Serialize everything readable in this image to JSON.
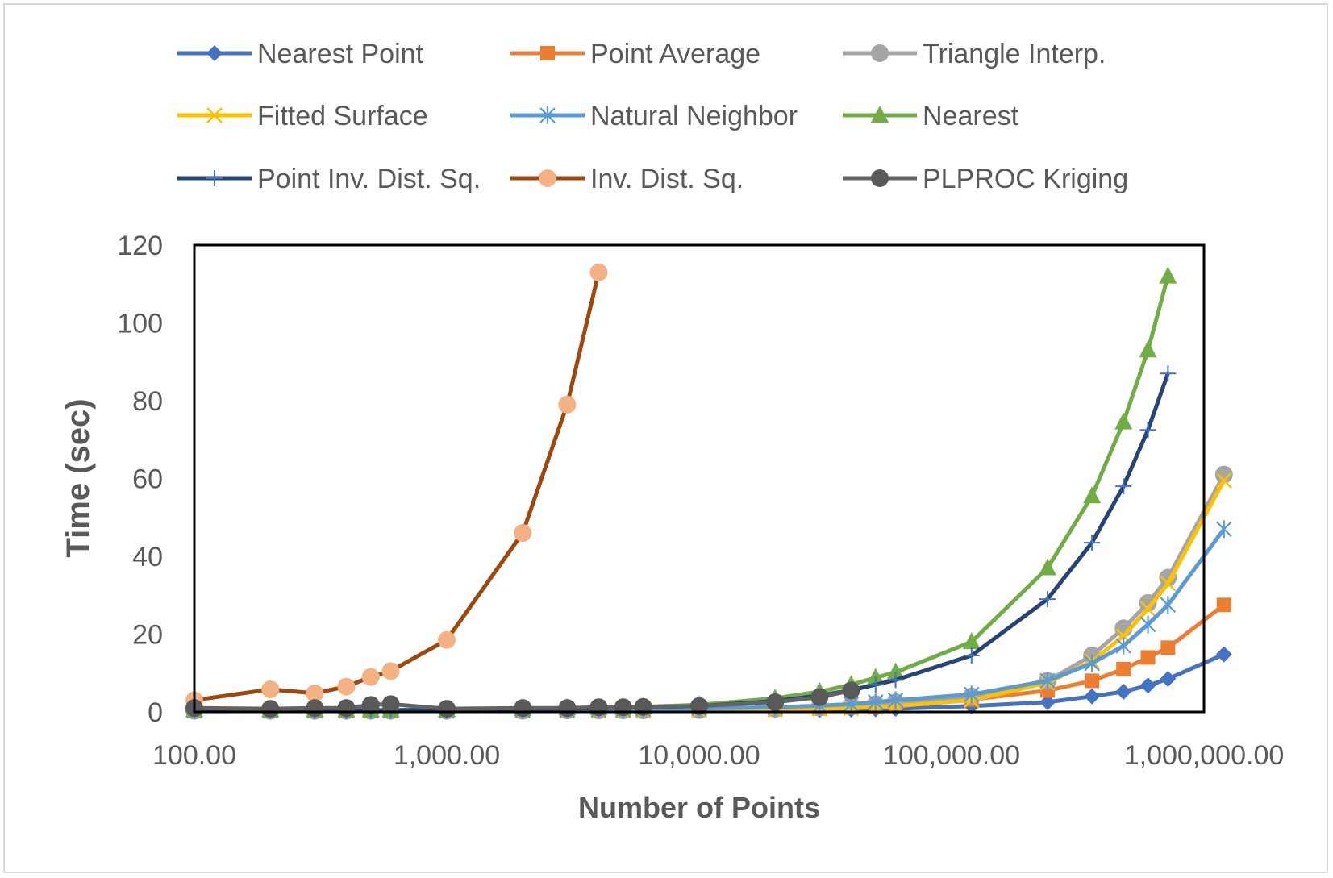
{
  "chart_data": {
    "type": "line",
    "title": "",
    "xlabel": "Number of Points",
    "ylabel": "Time (sec)",
    "x_scale": "log",
    "xlim": [
      100,
      1000000
    ],
    "ylim": [
      0,
      120
    ],
    "x_ticks": [
      100,
      1000,
      10000,
      100000,
      1000000
    ],
    "x_tick_labels": [
      "100.00",
      "1,000.00",
      "10,000.00",
      "100,000.00",
      "1,000,000.00"
    ],
    "y_ticks": [
      0,
      20,
      40,
      60,
      80,
      100,
      120
    ],
    "y_tick_labels": [
      "0",
      "20",
      "40",
      "60",
      "80",
      "100",
      "120"
    ],
    "grid": false,
    "legend_position": "top",
    "series": [
      {
        "name": "Nearest Point",
        "color": "#4472c4",
        "marker": "diamond",
        "marker_color": "#4472c4",
        "points": [
          [
            100,
            0.2
          ],
          [
            200,
            0.2
          ],
          [
            300,
            0.2
          ],
          [
            400,
            0.2
          ],
          [
            500,
            0.2
          ],
          [
            600,
            0.2
          ],
          [
            1000,
            0.2
          ],
          [
            2000,
            0.2
          ],
          [
            3000,
            0.2
          ],
          [
            4000,
            0.3
          ],
          [
            5000,
            0.3
          ],
          [
            6000,
            0.3
          ],
          [
            10000,
            0.3
          ],
          [
            20000,
            0.4
          ],
          [
            30000,
            0.5
          ],
          [
            40000,
            0.6
          ],
          [
            50000,
            0.7
          ],
          [
            60000,
            0.8
          ],
          [
            120000,
            1.5
          ],
          [
            240000,
            2.5
          ],
          [
            360000,
            4
          ],
          [
            480000,
            5.2
          ],
          [
            600000,
            6.8
          ],
          [
            720000,
            8.5
          ],
          [
            1200000,
            14.8
          ]
        ]
      },
      {
        "name": "Point Average",
        "color": "#ed7d31",
        "marker": "square",
        "marker_color": "#ed7d31",
        "points": [
          [
            100,
            0.3
          ],
          [
            200,
            0.3
          ],
          [
            300,
            0.3
          ],
          [
            400,
            0.3
          ],
          [
            500,
            0.3
          ],
          [
            600,
            0.3
          ],
          [
            1000,
            0.3
          ],
          [
            2000,
            0.3
          ],
          [
            3000,
            0.4
          ],
          [
            4000,
            0.4
          ],
          [
            5000,
            0.4
          ],
          [
            6000,
            0.4
          ],
          [
            10000,
            0.5
          ],
          [
            20000,
            0.7
          ],
          [
            30000,
            0.9
          ],
          [
            40000,
            1.2
          ],
          [
            50000,
            1.4
          ],
          [
            60000,
            1.7
          ],
          [
            120000,
            3.2
          ],
          [
            240000,
            5.5
          ],
          [
            360000,
            8
          ],
          [
            480000,
            11
          ],
          [
            600000,
            14
          ],
          [
            720000,
            16.5
          ],
          [
            1200000,
            27.5
          ]
        ]
      },
      {
        "name": "Triangle Interp.",
        "color": "#a5a5a5",
        "marker": "circle",
        "marker_color": "#a5a5a5",
        "points": [
          [
            100,
            0.3
          ],
          [
            200,
            0.3
          ],
          [
            300,
            0.3
          ],
          [
            400,
            0.3
          ],
          [
            500,
            0.3
          ],
          [
            600,
            0.3
          ],
          [
            1000,
            0.3
          ],
          [
            2000,
            0.3
          ],
          [
            3000,
            0.4
          ],
          [
            4000,
            0.4
          ],
          [
            5000,
            0.4
          ],
          [
            6000,
            0.4
          ],
          [
            10000,
            0.5
          ],
          [
            20000,
            0.8
          ],
          [
            30000,
            1.2
          ],
          [
            40000,
            1.6
          ],
          [
            50000,
            2
          ],
          [
            60000,
            2.5
          ],
          [
            120000,
            4
          ],
          [
            240000,
            8
          ],
          [
            360000,
            14.5
          ],
          [
            480000,
            21.5
          ],
          [
            600000,
            28
          ],
          [
            720000,
            34.5
          ],
          [
            1200000,
            61
          ]
        ]
      },
      {
        "name": "Fitted Surface",
        "color": "#ffc000",
        "marker": "x",
        "marker_color": "#ffc000",
        "points": [
          [
            100,
            0.3
          ],
          [
            200,
            0.3
          ],
          [
            300,
            0.3
          ],
          [
            400,
            0.3
          ],
          [
            500,
            0.3
          ],
          [
            600,
            0.3
          ],
          [
            1000,
            0.3
          ],
          [
            2000,
            0.3
          ],
          [
            3000,
            0.3
          ],
          [
            4000,
            0.3
          ],
          [
            5000,
            0.3
          ],
          [
            6000,
            0.3
          ],
          [
            10000,
            0.4
          ],
          [
            20000,
            0.6
          ],
          [
            30000,
            0.8
          ],
          [
            40000,
            1
          ],
          [
            50000,
            1.2
          ],
          [
            60000,
            1.5
          ],
          [
            120000,
            3
          ],
          [
            240000,
            7.5
          ],
          [
            360000,
            13
          ],
          [
            480000,
            19.5
          ],
          [
            600000,
            26.5
          ],
          [
            720000,
            33
          ],
          [
            1200000,
            59.5
          ]
        ]
      },
      {
        "name": "Natural Neighbor",
        "color": "#5b9bd5",
        "marker": "asterisk",
        "marker_color": "#5b9bd5",
        "points": [
          [
            100,
            0.3
          ],
          [
            200,
            0.3
          ],
          [
            300,
            0.3
          ],
          [
            400,
            0.3
          ],
          [
            500,
            0.3
          ],
          [
            600,
            0.3
          ],
          [
            1000,
            0.3
          ],
          [
            2000,
            0.4
          ],
          [
            3000,
            0.5
          ],
          [
            4000,
            0.6
          ],
          [
            5000,
            0.6
          ],
          [
            6000,
            0.7
          ],
          [
            10000,
            0.9
          ],
          [
            20000,
            1.2
          ],
          [
            30000,
            1.6
          ],
          [
            40000,
            2
          ],
          [
            50000,
            2.5
          ],
          [
            60000,
            3
          ],
          [
            120000,
            4.5
          ],
          [
            240000,
            8
          ],
          [
            360000,
            12.5
          ],
          [
            480000,
            17
          ],
          [
            600000,
            22.5
          ],
          [
            720000,
            27.5
          ],
          [
            1200000,
            47
          ]
        ]
      },
      {
        "name": "Nearest",
        "color": "#70ad47",
        "marker": "triangle",
        "marker_color": "#70ad47",
        "points": [
          [
            100,
            0.5
          ],
          [
            200,
            0.5
          ],
          [
            300,
            0.5
          ],
          [
            400,
            0.5
          ],
          [
            500,
            0.5
          ],
          [
            600,
            0.5
          ],
          [
            1000,
            0.6
          ],
          [
            2000,
            0.8
          ],
          [
            3000,
            1
          ],
          [
            4000,
            1.1
          ],
          [
            5000,
            1.2
          ],
          [
            6000,
            1.3
          ],
          [
            10000,
            1.8
          ],
          [
            20000,
            3.5
          ],
          [
            30000,
            5.2
          ],
          [
            40000,
            7
          ],
          [
            50000,
            8.8
          ],
          [
            60000,
            10.2
          ],
          [
            120000,
            18
          ],
          [
            240000,
            37
          ],
          [
            360000,
            55.5
          ],
          [
            480000,
            74.5
          ],
          [
            600000,
            93
          ],
          [
            720000,
            112
          ]
        ]
      },
      {
        "name": "Point Inv. Dist. Sq.",
        "color": "#264478",
        "marker": "plus",
        "marker_color": "#4472c4",
        "points": [
          [
            100,
            0.4
          ],
          [
            200,
            0.4
          ],
          [
            300,
            0.4
          ],
          [
            400,
            0.4
          ],
          [
            500,
            0.4
          ],
          [
            600,
            0.4
          ],
          [
            1000,
            0.5
          ],
          [
            2000,
            0.7
          ],
          [
            3000,
            0.9
          ],
          [
            4000,
            1
          ],
          [
            5000,
            1.1
          ],
          [
            6000,
            1.2
          ],
          [
            10000,
            1.5
          ],
          [
            20000,
            2.8
          ],
          [
            30000,
            4.2
          ],
          [
            40000,
            5.6
          ],
          [
            50000,
            7
          ],
          [
            60000,
            8.2
          ],
          [
            120000,
            14.5
          ],
          [
            240000,
            29
          ],
          [
            360000,
            43.5
          ],
          [
            480000,
            58
          ],
          [
            600000,
            72.5
          ],
          [
            720000,
            87
          ]
        ]
      },
      {
        "name": "Inv. Dist. Sq.",
        "color": "#9e480e",
        "marker": "circle",
        "marker_color": "#f4b183",
        "points": [
          [
            100,
            3
          ],
          [
            200,
            5.8
          ],
          [
            300,
            4.8
          ],
          [
            400,
            6.5
          ],
          [
            500,
            9
          ],
          [
            600,
            10.5
          ],
          [
            1000,
            18.5
          ],
          [
            2000,
            46
          ],
          [
            3000,
            79
          ],
          [
            4000,
            113
          ]
        ]
      },
      {
        "name": "PLPROC Kriging",
        "color": "#636363",
        "marker": "circle",
        "marker_color": "#595959",
        "points": [
          [
            100,
            1
          ],
          [
            200,
            0.8
          ],
          [
            300,
            1
          ],
          [
            400,
            1
          ],
          [
            500,
            1.8
          ],
          [
            600,
            2
          ],
          [
            1000,
            0.8
          ],
          [
            2000,
            1
          ],
          [
            3000,
            1
          ],
          [
            4000,
            1.2
          ],
          [
            5000,
            1.2
          ],
          [
            6000,
            1.3
          ],
          [
            10000,
            1.5
          ],
          [
            20000,
            2.5
          ],
          [
            30000,
            3.8
          ],
          [
            40000,
            5.5
          ]
        ]
      }
    ]
  }
}
